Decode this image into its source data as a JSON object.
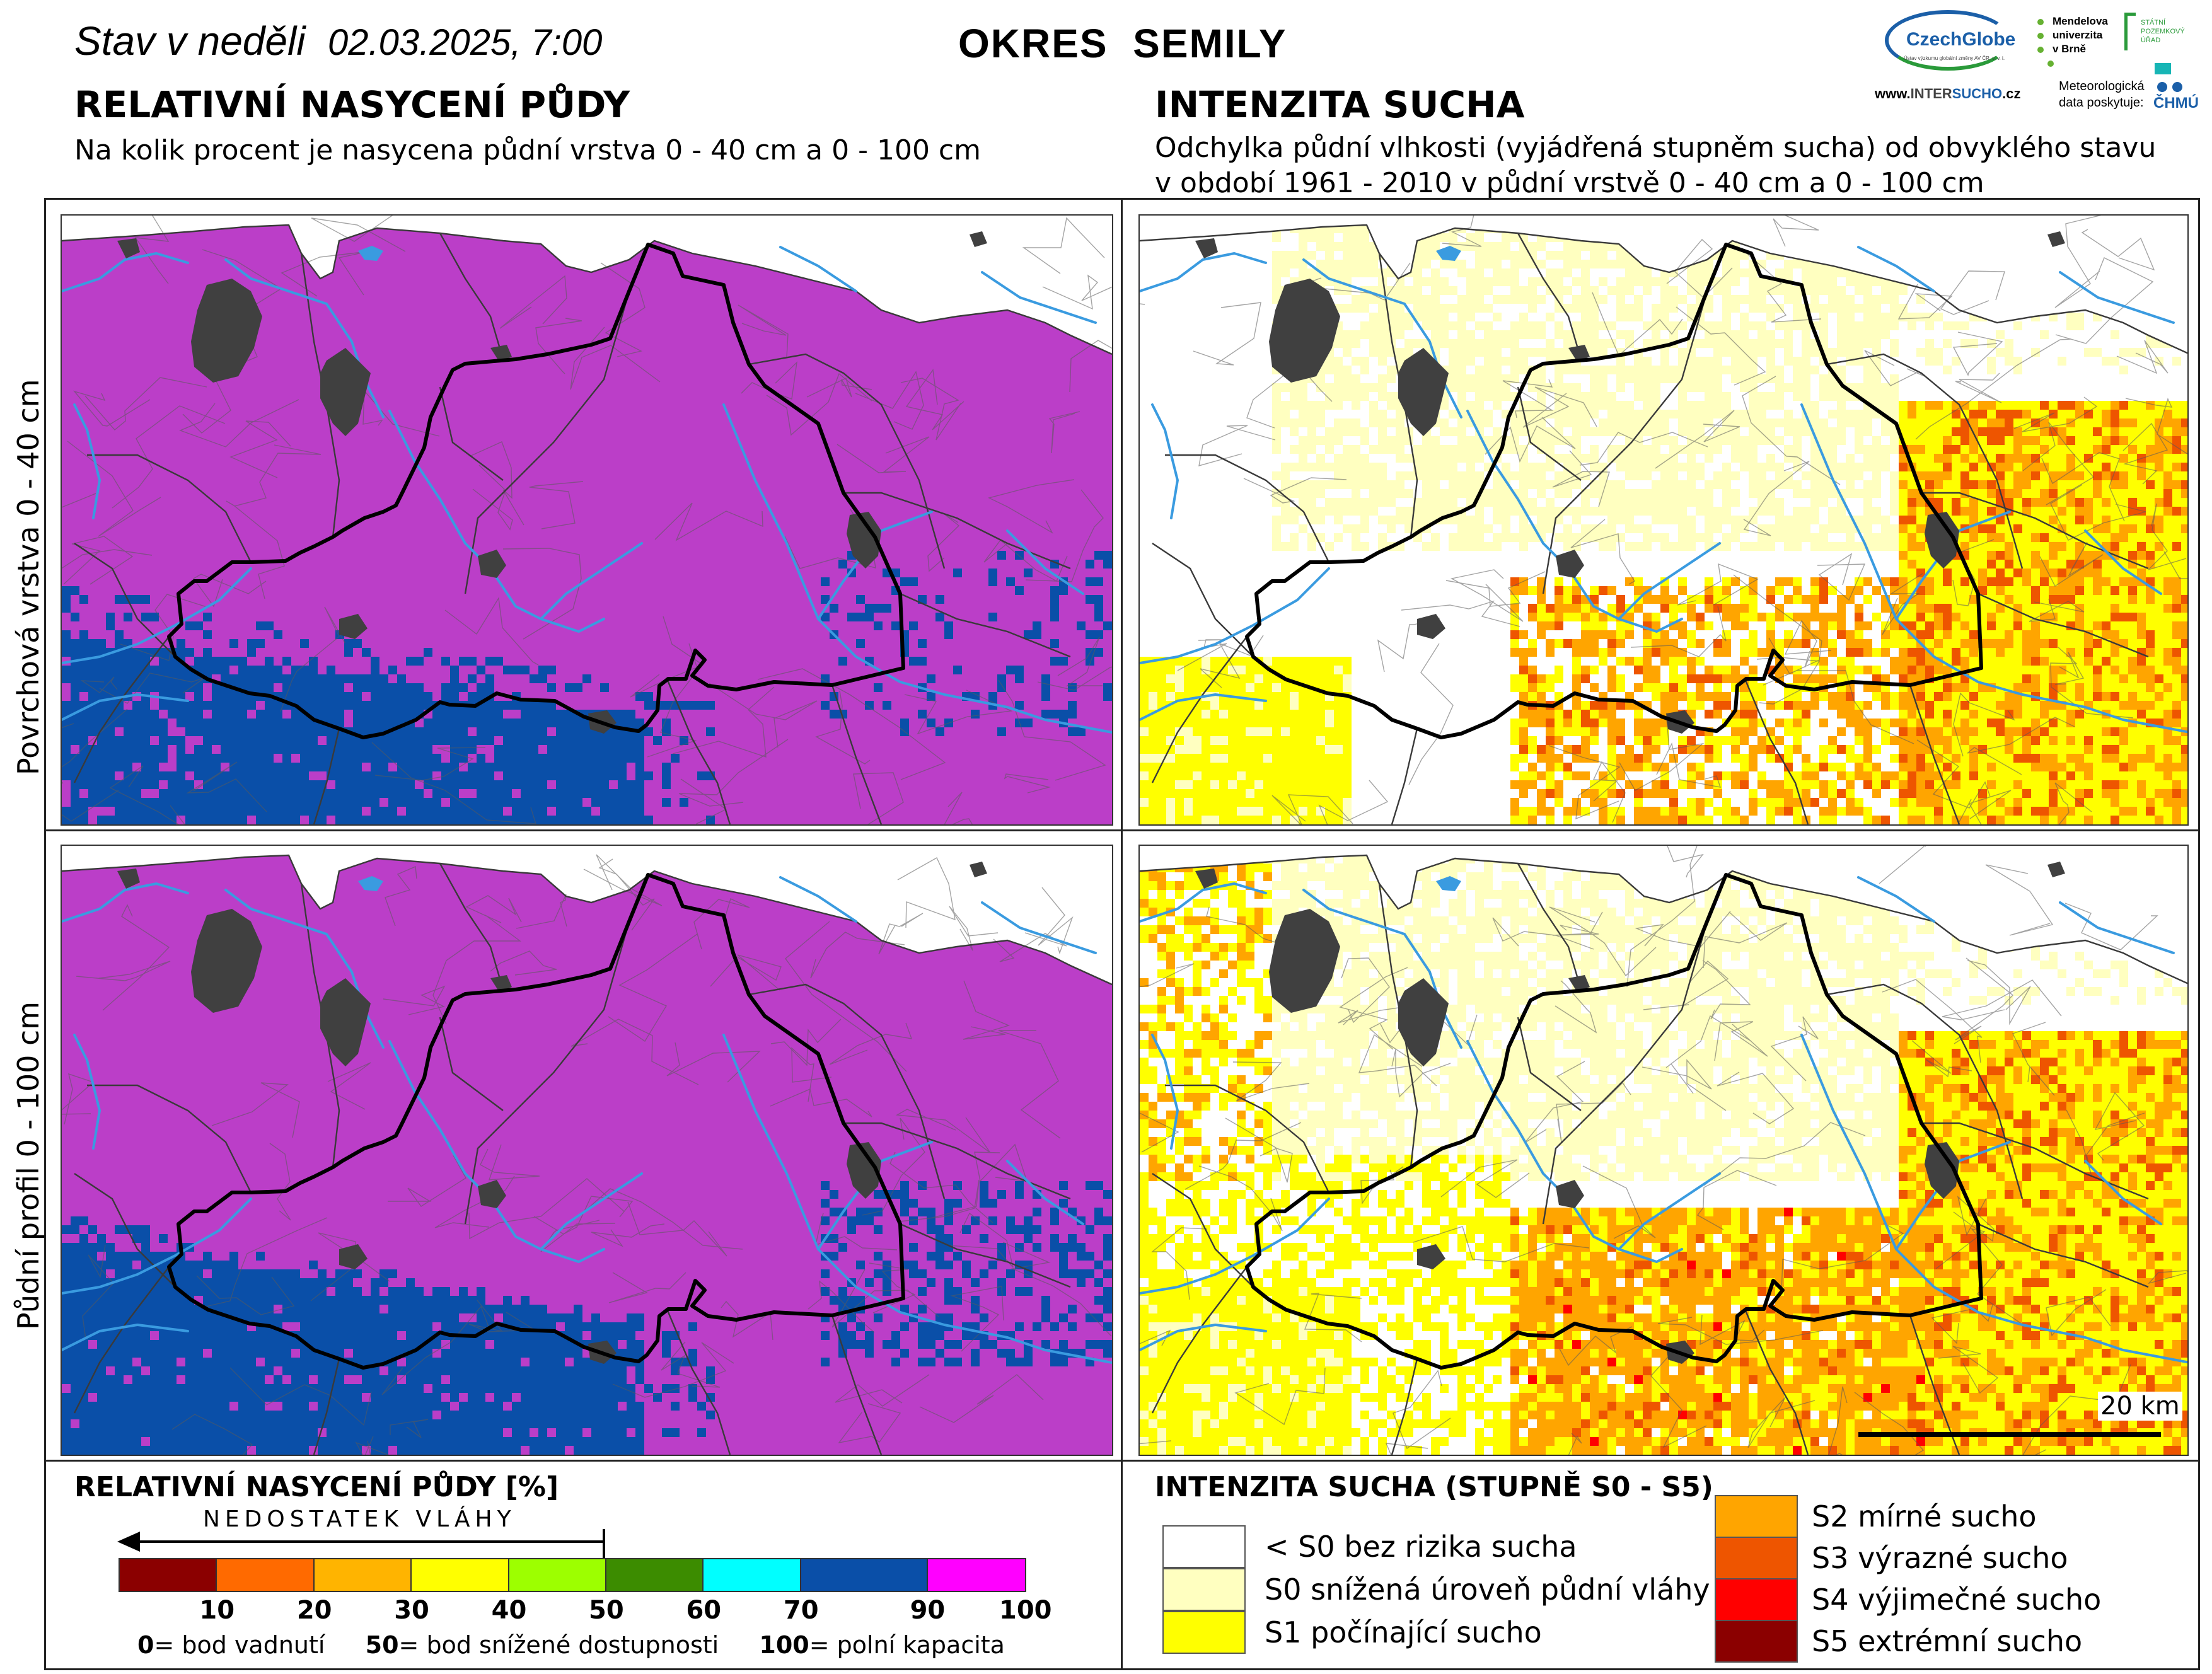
{
  "header": {
    "date_prefix": "Stav v neděli",
    "date": "02.03.2025, 7:00",
    "district": "OKRES  SEMILY"
  },
  "left_section": {
    "title": "RELATIVNÍ NASYCENÍ PŮDY",
    "subtitle": "Na kolik procent je nasycena půdní vrstva 0 - 40 cm a 0 - 100 cm"
  },
  "right_section": {
    "title": "INTENZITA SUCHA",
    "subtitle_line1": "Odchylka půdní vlhkosti (vyjádřená stupněm sucha) od obvyklého stavu",
    "subtitle_line2": "v období 1961 - 2010 v půdní vrstvě 0 - 40 cm a 0 - 100 cm"
  },
  "rows": {
    "top_label": "Povrchová vrstva 0 - 40 cm",
    "bottom_label": "Půdní profil 0 - 100 cm"
  },
  "logos": {
    "czechglobe": "CzechGlobe",
    "czechglobe_sub": "Ústav výzkumu globální změny AV ČR, v. v. i.",
    "mendelu_line1": "Mendelova",
    "mendelu_line2": "univerzita",
    "mendelu_line3": "v Brně",
    "spu_line1": "STÁTNÍ",
    "spu_line2": "POZEMKOVÝ",
    "spu_line3": "ÚŘAD",
    "intersucho_www": "www.",
    "intersucho_name_a": "INTER",
    "intersucho_name_b": "SUCHO",
    "intersucho_tld": ".cz",
    "chmu_line1": "Meteorologická",
    "chmu_line2": "data poskytuje:",
    "chmu_name": "ČHMÚ"
  },
  "scale_bar": {
    "label": "20 km"
  },
  "saturation_legend": {
    "title": "RELATIVNÍ NASYCENÍ PŮDY [%]",
    "arrow_label": "NEDOSTATEK VLÁHY",
    "colors": [
      "#8b0000",
      "#ff6a00",
      "#ffb400",
      "#ffff00",
      "#9dff00",
      "#3c8c00",
      "#00ffff",
      "#0a4fa8",
      "#ff00ff"
    ],
    "ticks": [
      "10",
      "20",
      "30",
      "40",
      "50",
      "60",
      "70",
      "90",
      "100"
    ],
    "notes": [
      {
        "value": "0",
        "text": "= bod vadnutí"
      },
      {
        "value": "50",
        "text": "= bod snížené dostupnosti"
      },
      {
        "value": "100",
        "text": "= polní kapacita"
      }
    ]
  },
  "drought_legend": {
    "title": "INTENZITA SUCHA (STUPNĚ S0 - S5)",
    "items": [
      {
        "label": "< S0 bez rizika sucha",
        "color": "#ffffff"
      },
      {
        "label": "S0 snížená úroveň půdní vláhy",
        "color": "#ffffc0"
      },
      {
        "label": "S1 počínající sucho",
        "color": "#ffff00"
      },
      {
        "label": "S2 mírné sucho",
        "color": "#ffa500"
      },
      {
        "label": "S3 výrazné sucho",
        "color": "#ee5500"
      },
      {
        "label": "S4 výjimečné sucho",
        "color": "#ff0000"
      },
      {
        "label": "S5 extrémní sucho",
        "color": "#8b0000"
      }
    ]
  },
  "colors": {
    "magenta": "#bb3ec8",
    "blue": "#0a4fa8",
    "city": "#404040",
    "river": "#3a9be0",
    "s0": "#ffffc0",
    "s1": "#ffff00",
    "s2": "#ffa500",
    "s3": "#ee5500",
    "s4": "#ff0000"
  }
}
